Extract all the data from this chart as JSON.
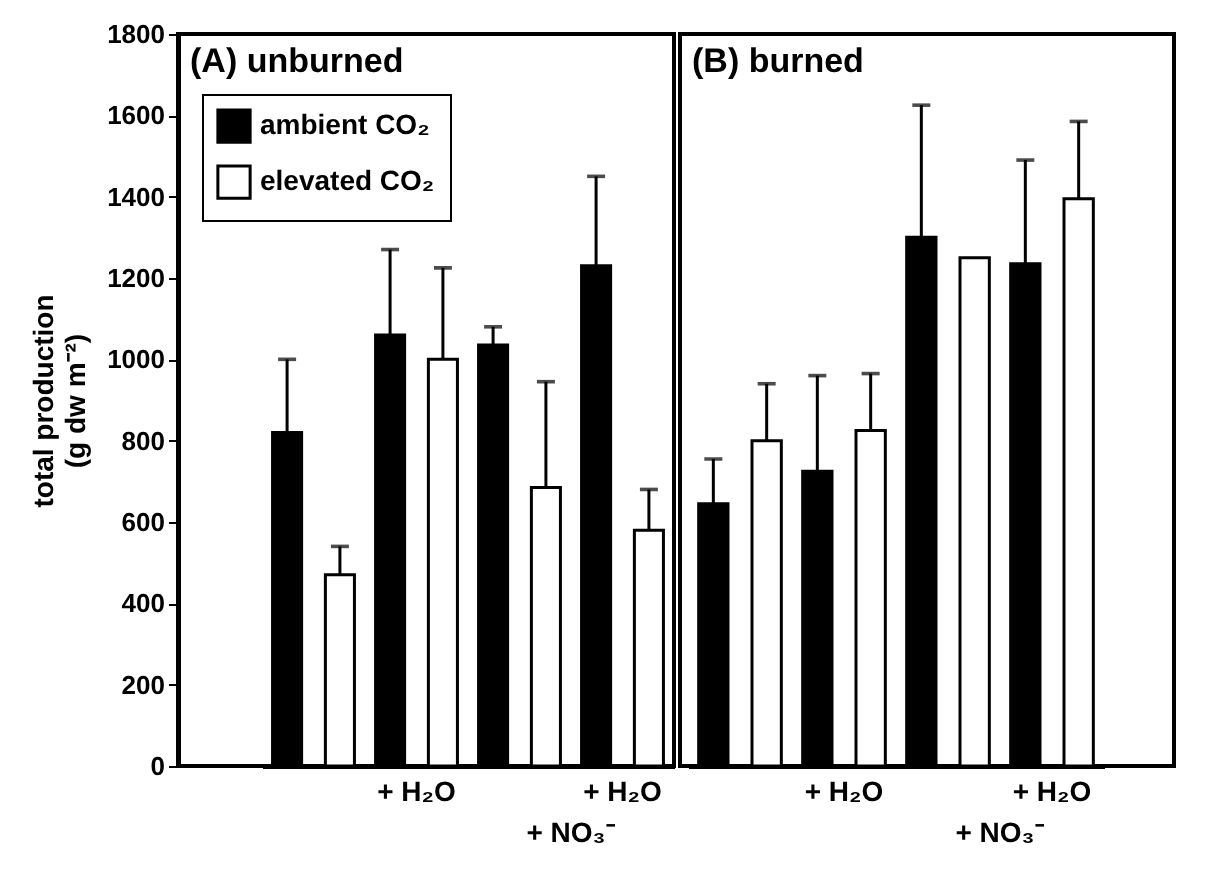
{
  "chart_data": [
    {
      "type": "bar",
      "title": "(A) unburned",
      "ylabel": "total production\n(g dw m⁻²)",
      "categories": [
        null,
        "+ H₂O",
        null,
        "+ H₂O"
      ],
      "series": [
        {
          "name": "ambient CO₂",
          "color": "#000000",
          "values": [
            820,
            1060,
            1035,
            1230
          ],
          "errors": [
            [
              820,
              1000
            ],
            [
              1060,
              1270
            ],
            [
              1035,
              1080
            ],
            [
              1230,
              1450
            ]
          ]
        },
        {
          "name": "elevated CO₂",
          "color": "#ffffff",
          "values": [
            470,
            1000,
            685,
            580
          ],
          "errors": [
            [
              470,
              540
            ],
            [
              1000,
              1225
            ],
            [
              685,
              945
            ],
            [
              580,
              680
            ]
          ]
        }
      ],
      "ylim": [
        0,
        1800
      ],
      "yticks": [
        0,
        200,
        400,
        600,
        800,
        1000,
        1200,
        1400,
        1600,
        1800
      ],
      "legend": "top left",
      "annotations": [
        "+ NO₃⁻"
      ]
    },
    {
      "type": "bar",
      "title": "(B) burned",
      "categories": [
        null,
        "+ H₂O",
        null,
        "+ H₂O"
      ],
      "series": [
        {
          "color": "#000000",
          "values": [
            645,
            725,
            1300,
            1235
          ],
          "errors": [
            [
              645,
              755
            ],
            [
              725,
              960
            ],
            [
              1300,
              1625
            ],
            [
              1235,
              1490
            ]
          ]
        },
        {
          "color": "#ffffff",
          "values": [
            800,
            825,
            1250,
            1395
          ],
          "errors": [
            [
              800,
              940
            ],
            [
              825,
              965
            ],
            null,
            [
              1395,
              1585
            ]
          ]
        }
      ],
      "ylim": [
        0,
        1800
      ],
      "yticks": [
        0,
        200,
        400,
        600,
        800,
        1000,
        1200,
        1400,
        1600,
        1800
      ],
      "tick_labels": "x",
      "annotations": [
        "+ NO₃⁻"
      ]
    }
  ]
}
